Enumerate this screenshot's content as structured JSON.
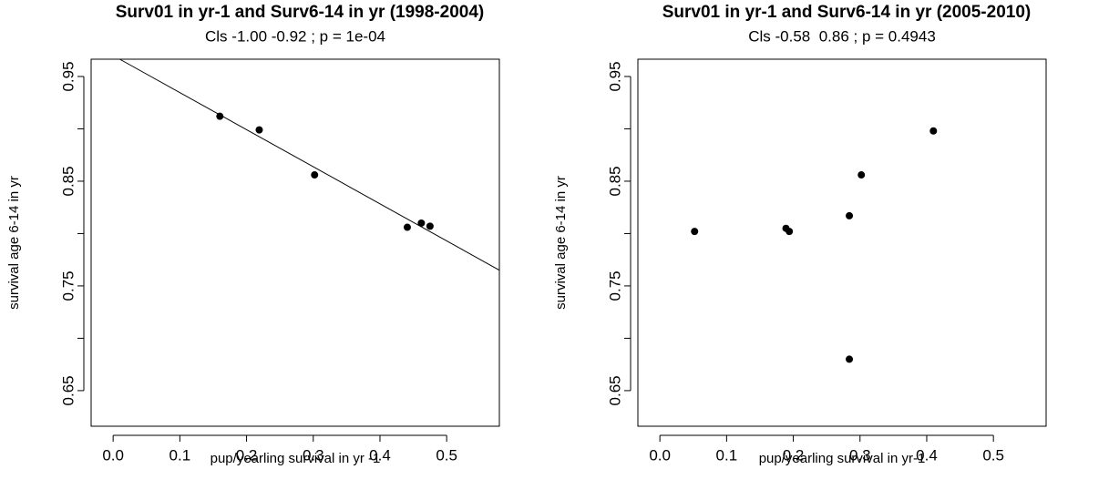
{
  "chart_data": [
    {
      "type": "scatter",
      "title": "Surv01 in yr-1 and Surv6-14 in yr (1998-2004)",
      "subtitle": "Cls -1.00 -0.92 ; p = 1e-04",
      "x_label": "pup/yearling survival in yr -1",
      "y_label": "survival age 6-14 in yr",
      "x": [
        0.16,
        0.219,
        0.302,
        0.441,
        0.462,
        0.475
      ],
      "values": [
        0.912,
        0.899,
        0.856,
        0.806,
        0.81,
        0.807
      ],
      "color": "#000000",
      "fit_line": {
        "intercept": 0.97,
        "slope": -0.354
      },
      "xlim": [
        -0.033,
        0.579
      ],
      "ylim": [
        0.616,
        0.9665
      ],
      "xticks": [
        {
          "value": 0,
          "label": "0.0"
        },
        0.1,
        0.2,
        0.3,
        0.4,
        0.5
      ],
      "yticks": [
        0.65,
        {
          "value": 0.7,
          "label": null
        },
        0.75,
        {
          "value": 0.8,
          "label": null
        },
        0.85,
        {
          "value": 0.9,
          "label": null
        },
        0.95
      ]
    },
    {
      "type": "scatter",
      "title": "Surv01 in yr-1 and Surv6-14 in yr (2005-2010)",
      "subtitle": "Cls -0.58  0.86 ; p = 0.4943",
      "x_label": "pup/yearling survival in yr-1",
      "y_label": "survival age 6-14 in yr",
      "x": [
        0.052,
        0.189,
        0.194,
        0.284,
        0.302,
        0.284,
        0.41
      ],
      "values": [
        0.802,
        0.805,
        0.802,
        0.817,
        0.856,
        0.68,
        0.898
      ],
      "color": "#000000",
      "xlim": [
        -0.033,
        0.579
      ],
      "ylim": [
        0.616,
        0.9665
      ],
      "xticks": [
        {
          "value": 0,
          "label": "0.0"
        },
        0.1,
        0.2,
        0.3,
        0.4,
        0.5
      ],
      "yticks": [
        0.65,
        {
          "value": 0.7,
          "label": null
        },
        0.75,
        {
          "value": 0.8,
          "label": null
        },
        0.85,
        {
          "value": 0.9,
          "label": null
        },
        0.95
      ]
    }
  ]
}
